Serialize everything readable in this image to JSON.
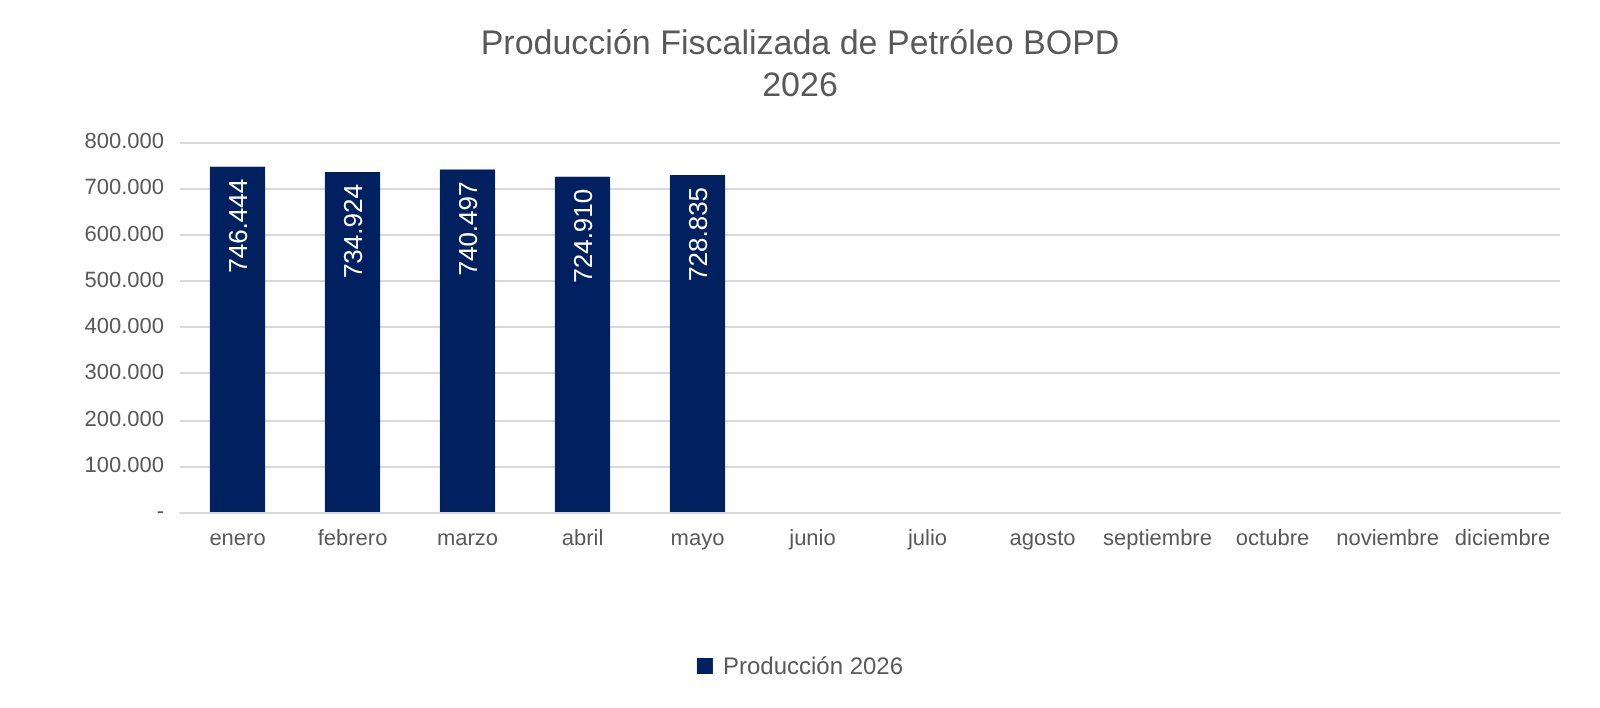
{
  "chart_data": {
    "type": "bar",
    "title": "Producción Fiscalizada de Petróleo BOPD",
    "subtitle": "2026",
    "categories": [
      "enero",
      "febrero",
      "marzo",
      "abril",
      "mayo",
      "junio",
      "julio",
      "agosto",
      "septiembre",
      "octubre",
      "noviembre",
      "diciembre"
    ],
    "series": [
      {
        "name": "Producción 2026",
        "color": "#002060",
        "values": [
          746444,
          734924,
          740497,
          724910,
          728835,
          null,
          null,
          null,
          null,
          null,
          null,
          null
        ],
        "value_labels": [
          "746.444",
          "734.924",
          "740.497",
          "724.910",
          "728.835",
          null,
          null,
          null,
          null,
          null,
          null,
          null
        ]
      }
    ],
    "ylim": [
      0,
      800000
    ],
    "yticks": [
      {
        "value": 0,
        "label": "-"
      },
      {
        "value": 100000,
        "label": "100.000"
      },
      {
        "value": 200000,
        "label": "200.000"
      },
      {
        "value": 300000,
        "label": "300.000"
      },
      {
        "value": 400000,
        "label": "400.000"
      },
      {
        "value": 500000,
        "label": "500.000"
      },
      {
        "value": 600000,
        "label": "600.000"
      },
      {
        "value": 700000,
        "label": "700.000"
      },
      {
        "value": 800000,
        "label": "800.000"
      }
    ],
    "grid": "y",
    "legend": "bottom"
  }
}
